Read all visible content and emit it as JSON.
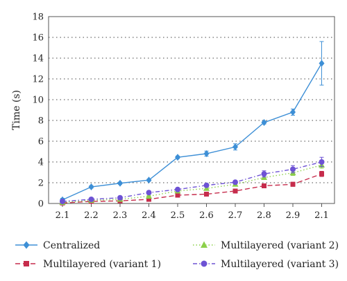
{
  "chart_data": {
    "type": "line",
    "title": "",
    "xlabel": "",
    "ylabel": "Time (s)",
    "categories": [
      "2.1",
      "2.2",
      "2.3",
      "2.4",
      "2.5",
      "2.6",
      "2.7",
      "2.8",
      "2.9",
      "2.1"
    ],
    "ylim": [
      0,
      18
    ],
    "yticks": [
      0,
      2,
      4,
      6,
      8,
      10,
      12,
      14,
      16,
      18
    ],
    "grid": "horizontal dotted",
    "legend_position": "bottom",
    "series": [
      {
        "name": "Centralized",
        "color": "#3d8fd6",
        "marker": "diamond",
        "line_style": "solid",
        "values": [
          0.35,
          1.6,
          1.95,
          2.25,
          4.45,
          4.8,
          5.45,
          7.8,
          8.8,
          13.5
        ],
        "errors": [
          0.15,
          0.12,
          0.1,
          0.1,
          0.12,
          0.25,
          0.3,
          0.15,
          0.3,
          2.1
        ]
      },
      {
        "name": "Multilayered (variant 1)",
        "color": "#c62c4c",
        "marker": "square",
        "line_style": "dashed",
        "values": [
          0.05,
          0.2,
          0.25,
          0.4,
          0.8,
          0.9,
          1.2,
          1.7,
          1.85,
          2.85
        ],
        "errors": [
          0.05,
          0.05,
          0.05,
          0.05,
          0.08,
          0.08,
          0.1,
          0.15,
          0.2,
          0.25
        ]
      },
      {
        "name": "Multilayered (variant 2)",
        "color": "#8cd04a",
        "marker": "triangle",
        "line_style": "dotted",
        "values": [
          0.1,
          0.3,
          0.4,
          0.7,
          1.2,
          1.45,
          1.85,
          2.5,
          2.95,
          3.7
        ],
        "errors": [
          0.05,
          0.05,
          0.05,
          0.08,
          0.1,
          0.12,
          0.15,
          0.2,
          0.25,
          0.3
        ]
      },
      {
        "name": "Multilayered (variant 3)",
        "color": "#6d52d4",
        "marker": "circle",
        "line_style": "dashdot",
        "values": [
          0.2,
          0.4,
          0.55,
          1.05,
          1.35,
          1.75,
          2.05,
          2.85,
          3.3,
          4.0
        ],
        "errors": [
          0.05,
          0.05,
          0.08,
          0.1,
          0.12,
          0.15,
          0.15,
          0.3,
          0.35,
          0.45
        ]
      }
    ]
  }
}
